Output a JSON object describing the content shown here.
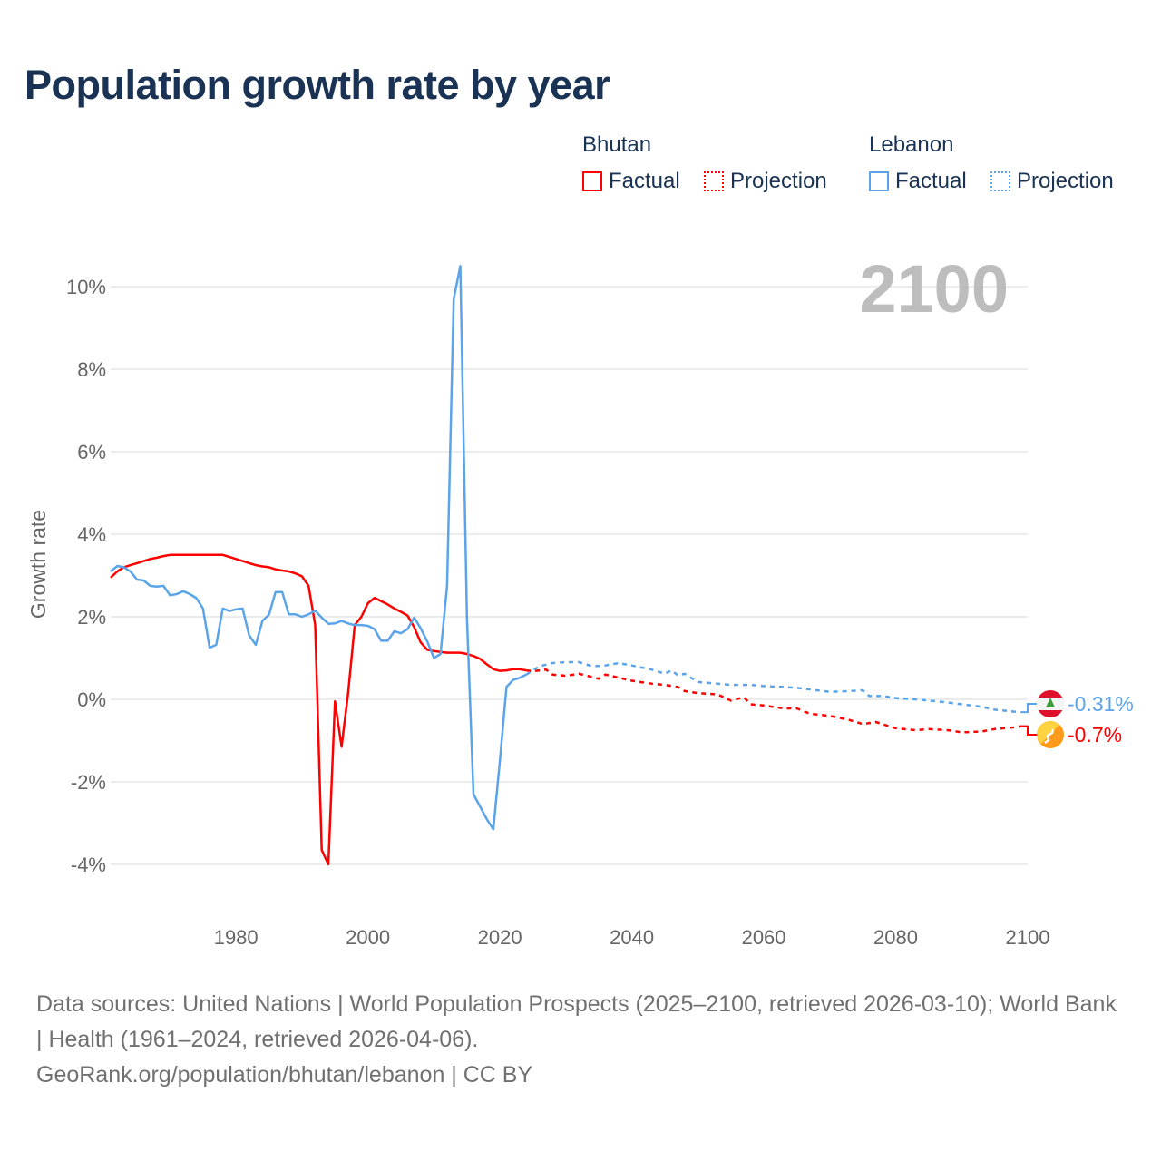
{
  "title": "Population growth rate by year",
  "current_year": "2100",
  "legend": {
    "groups": [
      {
        "name": "Bhutan",
        "color": "#ff0000",
        "factual": "Factual",
        "projection": "Projection"
      },
      {
        "name": "Lebanon",
        "color": "#5ba4ea",
        "factual": "Factual",
        "projection": "Projection"
      }
    ]
  },
  "end_labels": {
    "lebanon": "-0.31%",
    "bhutan": "-0.7%"
  },
  "footer": {
    "sources": "Data sources: United Nations | World Population Prospects (2025–2100, retrieved 2026-03-10); World Bank | Health (1961–2024, retrieved 2026-04-06).",
    "credit": "GeoRank.org/population/bhutan/lebanon | CC BY"
  },
  "chart_data": {
    "type": "line",
    "title": "Population growth rate by year",
    "xlabel": "",
    "ylabel": "Growth rate",
    "xlim": [
      1961,
      2100
    ],
    "ylim": [
      -5,
      11
    ],
    "yticks": [
      -4,
      -2,
      0,
      2,
      4,
      6,
      8,
      10
    ],
    "ytick_labels": [
      "-4%",
      "-2%",
      "0%",
      "2%",
      "4%",
      "6%",
      "8%",
      "10%"
    ],
    "xticks": [
      1980,
      2000,
      2020,
      2040,
      2060,
      2080,
      2100
    ],
    "xtick_labels": [
      "1980",
      "2000",
      "2020",
      "2040",
      "2060",
      "2080",
      "2100"
    ],
    "grid": true,
    "legend_placement": "top-right",
    "series": [
      {
        "name": "Bhutan Factual",
        "color": "#ff0000",
        "style": "solid",
        "x": [
          1961,
          1962,
          1963,
          1964,
          1965,
          1966,
          1967,
          1968,
          1969,
          1970,
          1971,
          1972,
          1973,
          1974,
          1975,
          1976,
          1977,
          1978,
          1979,
          1980,
          1981,
          1982,
          1983,
          1984,
          1985,
          1986,
          1987,
          1988,
          1989,
          1990,
          1991,
          1992,
          1993,
          1994,
          1995,
          1996,
          1997,
          1998,
          1999,
          2000,
          2001,
          2002,
          2003,
          2004,
          2005,
          2006,
          2007,
          2008,
          2009,
          2010,
          2011,
          2012,
          2013,
          2014,
          2015,
          2016,
          2017,
          2018,
          2019,
          2020,
          2021,
          2022,
          2023,
          2024
        ],
        "y": [
          2.95,
          3.1,
          3.2,
          3.25,
          3.3,
          3.35,
          3.4,
          3.43,
          3.47,
          3.5,
          3.5,
          3.5,
          3.5,
          3.5,
          3.5,
          3.5,
          3.5,
          3.5,
          3.45,
          3.4,
          3.35,
          3.3,
          3.25,
          3.22,
          3.2,
          3.15,
          3.12,
          3.1,
          3.05,
          2.98,
          2.75,
          1.8,
          -3.65,
          -4.0,
          -0.05,
          -1.15,
          0.15,
          1.8,
          2.0,
          2.33,
          2.46,
          2.38,
          2.3,
          2.2,
          2.12,
          2.03,
          1.75,
          1.38,
          1.2,
          1.17,
          1.15,
          1.13,
          1.13,
          1.13,
          1.1,
          1.05,
          0.98,
          0.85,
          0.73,
          0.69,
          0.7,
          0.73,
          0.73,
          0.7
        ]
      },
      {
        "name": "Bhutan Projection",
        "color": "#ff0000",
        "style": "dotted",
        "x": [
          2024,
          2025,
          2027,
          2028,
          2030,
          2032,
          2035,
          2036,
          2040,
          2043,
          2045,
          2047,
          2048,
          2050,
          2053,
          2055,
          2057,
          2058,
          2060,
          2063,
          2065,
          2067,
          2070,
          2073,
          2075,
          2077,
          2080,
          2083,
          2085,
          2088,
          2090,
          2093,
          2095,
          2098,
          2099
        ],
        "y": [
          0.7,
          0.68,
          0.72,
          0.6,
          0.57,
          0.62,
          0.5,
          0.6,
          0.45,
          0.38,
          0.35,
          0.3,
          0.2,
          0.15,
          0.12,
          -0.03,
          0.05,
          -0.12,
          -0.15,
          -0.22,
          -0.22,
          -0.35,
          -0.4,
          -0.5,
          -0.6,
          -0.55,
          -0.7,
          -0.75,
          -0.72,
          -0.75,
          -0.8,
          -0.78,
          -0.72,
          -0.68,
          -0.65
        ]
      },
      {
        "name": "Lebanon Factual",
        "color": "#5ba4ea",
        "style": "solid",
        "x": [
          1961,
          1962,
          1963,
          1964,
          1965,
          1966,
          1967,
          1968,
          1969,
          1970,
          1971,
          1972,
          1973,
          1974,
          1975,
          1976,
          1977,
          1978,
          1979,
          1980,
          1981,
          1982,
          1983,
          1984,
          1985,
          1986,
          1987,
          1988,
          1989,
          1990,
          1991,
          1992,
          1993,
          1994,
          1995,
          1996,
          1997,
          1998,
          1999,
          2000,
          2001,
          2002,
          2003,
          2004,
          2005,
          2006,
          2007,
          2008,
          2009,
          2010,
          2011,
          2012,
          2013,
          2014,
          2015,
          2016,
          2017,
          2018,
          2019,
          2020,
          2021,
          2022,
          2023,
          2024
        ],
        "y": [
          3.1,
          3.23,
          3.2,
          3.1,
          2.9,
          2.88,
          2.75,
          2.73,
          2.75,
          2.52,
          2.55,
          2.62,
          2.55,
          2.45,
          2.2,
          1.25,
          1.32,
          2.2,
          2.14,
          2.18,
          2.2,
          1.55,
          1.32,
          1.9,
          2.05,
          2.6,
          2.6,
          2.06,
          2.06,
          2.0,
          2.06,
          2.15,
          1.98,
          1.83,
          1.84,
          1.9,
          1.84,
          1.8,
          1.8,
          1.78,
          1.7,
          1.42,
          1.42,
          1.65,
          1.6,
          1.7,
          1.98,
          1.72,
          1.4,
          1.0,
          1.1,
          2.75,
          9.7,
          10.5,
          2.0,
          -2.3,
          -2.6,
          -2.9,
          -3.15,
          -1.5,
          0.3,
          0.47,
          0.52,
          0.6
        ]
      },
      {
        "name": "Lebanon Projection",
        "color": "#5ba4ea",
        "style": "dotted",
        "x": [
          2024,
          2026,
          2028,
          2030,
          2032,
          2034,
          2036,
          2038,
          2040,
          2043,
          2045,
          2046,
          2047,
          2048,
          2050,
          2053,
          2055,
          2058,
          2060,
          2063,
          2065,
          2068,
          2070,
          2073,
          2075,
          2076,
          2078,
          2080,
          2083,
          2085,
          2087,
          2090,
          2093,
          2095,
          2098,
          2099
        ],
        "y": [
          0.6,
          0.8,
          0.88,
          0.9,
          0.9,
          0.8,
          0.82,
          0.88,
          0.82,
          0.72,
          0.62,
          0.7,
          0.58,
          0.62,
          0.42,
          0.38,
          0.35,
          0.35,
          0.32,
          0.3,
          0.28,
          0.22,
          0.18,
          0.2,
          0.22,
          0.08,
          0.08,
          0.03,
          0.0,
          -0.03,
          -0.06,
          -0.12,
          -0.18,
          -0.25,
          -0.3,
          -0.31
        ]
      }
    ],
    "end_values": {
      "Lebanon": -0.31,
      "Bhutan": -0.7
    }
  }
}
